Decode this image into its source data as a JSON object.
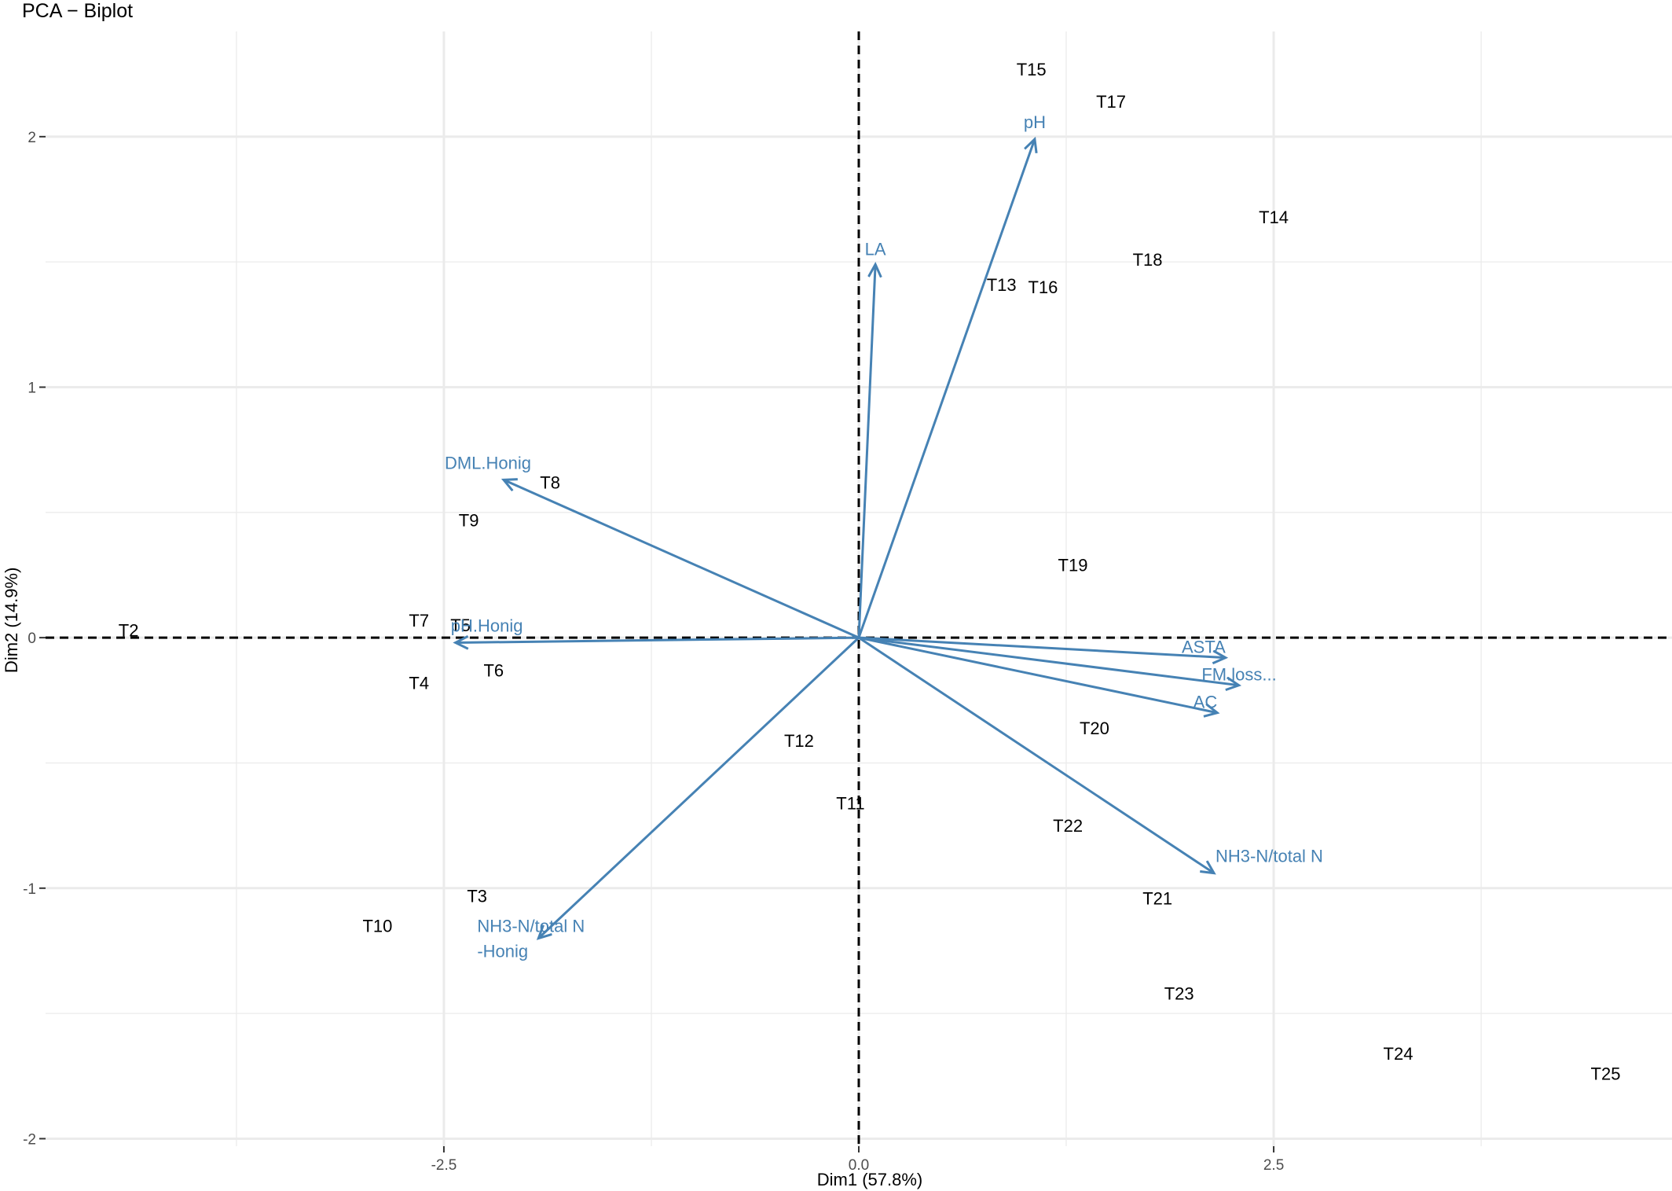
{
  "chart_data": {
    "type": "scatter",
    "title": "PCA − Biplot",
    "xlabel": "Dim1 (57.8%)",
    "ylabel": "Dim2 (14.9%)",
    "xlim": [
      -4.9,
      4.9
    ],
    "ylim": [
      -2.03,
      2.42
    ],
    "grid": true,
    "x_ticks": [
      -2.5,
      0.0,
      2.5
    ],
    "x_tick_labels": [
      "-2.5",
      "0.0",
      "2.5"
    ],
    "y_ticks": [
      -2,
      -1,
      0,
      1,
      2
    ],
    "y_tick_labels": [
      "-2",
      "-1",
      "0",
      "1",
      "2"
    ],
    "reference_lines": {
      "x": 0,
      "y": 0,
      "style": "dashed"
    },
    "colors": {
      "observations": "#000000",
      "variables": "#4682b4",
      "grid": "#ebebeb"
    },
    "observations": [
      {
        "label": "T2",
        "x": -4.4,
        "y": 0.03
      },
      {
        "label": "T3",
        "x": -2.3,
        "y": -1.03
      },
      {
        "label": "T4",
        "x": -2.65,
        "y": -0.18
      },
      {
        "label": "T5",
        "x": -2.4,
        "y": 0.05
      },
      {
        "label": "T6",
        "x": -2.2,
        "y": -0.13
      },
      {
        "label": "T7",
        "x": -2.65,
        "y": 0.07
      },
      {
        "label": "T8",
        "x": -1.86,
        "y": 0.62
      },
      {
        "label": "T9",
        "x": -2.35,
        "y": 0.47
      },
      {
        "label": "T10",
        "x": -2.9,
        "y": -1.15
      },
      {
        "label": "T11",
        "x": -0.05,
        "y": -0.66
      },
      {
        "label": "T12",
        "x": -0.36,
        "y": -0.41
      },
      {
        "label": "T13",
        "x": 0.86,
        "y": 1.41
      },
      {
        "label": "T14",
        "x": 2.5,
        "y": 1.68
      },
      {
        "label": "T15",
        "x": 1.04,
        "y": 2.27
      },
      {
        "label": "T16",
        "x": 1.11,
        "y": 1.4
      },
      {
        "label": "T17",
        "x": 1.52,
        "y": 2.14
      },
      {
        "label": "T18",
        "x": 1.74,
        "y": 1.51
      },
      {
        "label": "T19",
        "x": 1.29,
        "y": 0.29
      },
      {
        "label": "T20",
        "x": 1.42,
        "y": -0.36
      },
      {
        "label": "T21",
        "x": 1.8,
        "y": -1.04
      },
      {
        "label": "T22",
        "x": 1.26,
        "y": -0.75
      },
      {
        "label": "T23",
        "x": 1.93,
        "y": -1.42
      },
      {
        "label": "T24",
        "x": 3.25,
        "y": -1.66
      },
      {
        "label": "T25",
        "x": 4.5,
        "y": -1.74
      }
    ],
    "variables": [
      {
        "label": "pH",
        "lines": [
          "pH"
        ],
        "x": 1.06,
        "y": 1.99
      },
      {
        "label": "LA",
        "lines": [
          "LA"
        ],
        "x": 0.1,
        "y": 1.49
      },
      {
        "label": "DML.Honig",
        "lines": [
          "DML.Honig"
        ],
        "x": -2.14,
        "y": 0.63
      },
      {
        "label": "pH.Honig",
        "lines": [
          "pH.Honig"
        ],
        "x": -2.43,
        "y": -0.02
      },
      {
        "label": "ASTA",
        "lines": [
          "ASTA"
        ],
        "x": 2.21,
        "y": -0.08
      },
      {
        "label": "FM.loss...",
        "lines": [
          "FM.loss..."
        ],
        "x": 2.29,
        "y": -0.19
      },
      {
        "label": "AC",
        "lines": [
          "AC"
        ],
        "x": 2.16,
        "y": -0.3
      },
      {
        "label": "NH3-N/total N",
        "lines": [
          "NH3-N/total N"
        ],
        "x": 2.14,
        "y": -0.94
      },
      {
        "label": "NH3-N/total N -Honig",
        "lines": [
          "NH3-N/total N",
          "-Honig"
        ],
        "x": -1.93,
        "y": -1.2
      }
    ]
  }
}
